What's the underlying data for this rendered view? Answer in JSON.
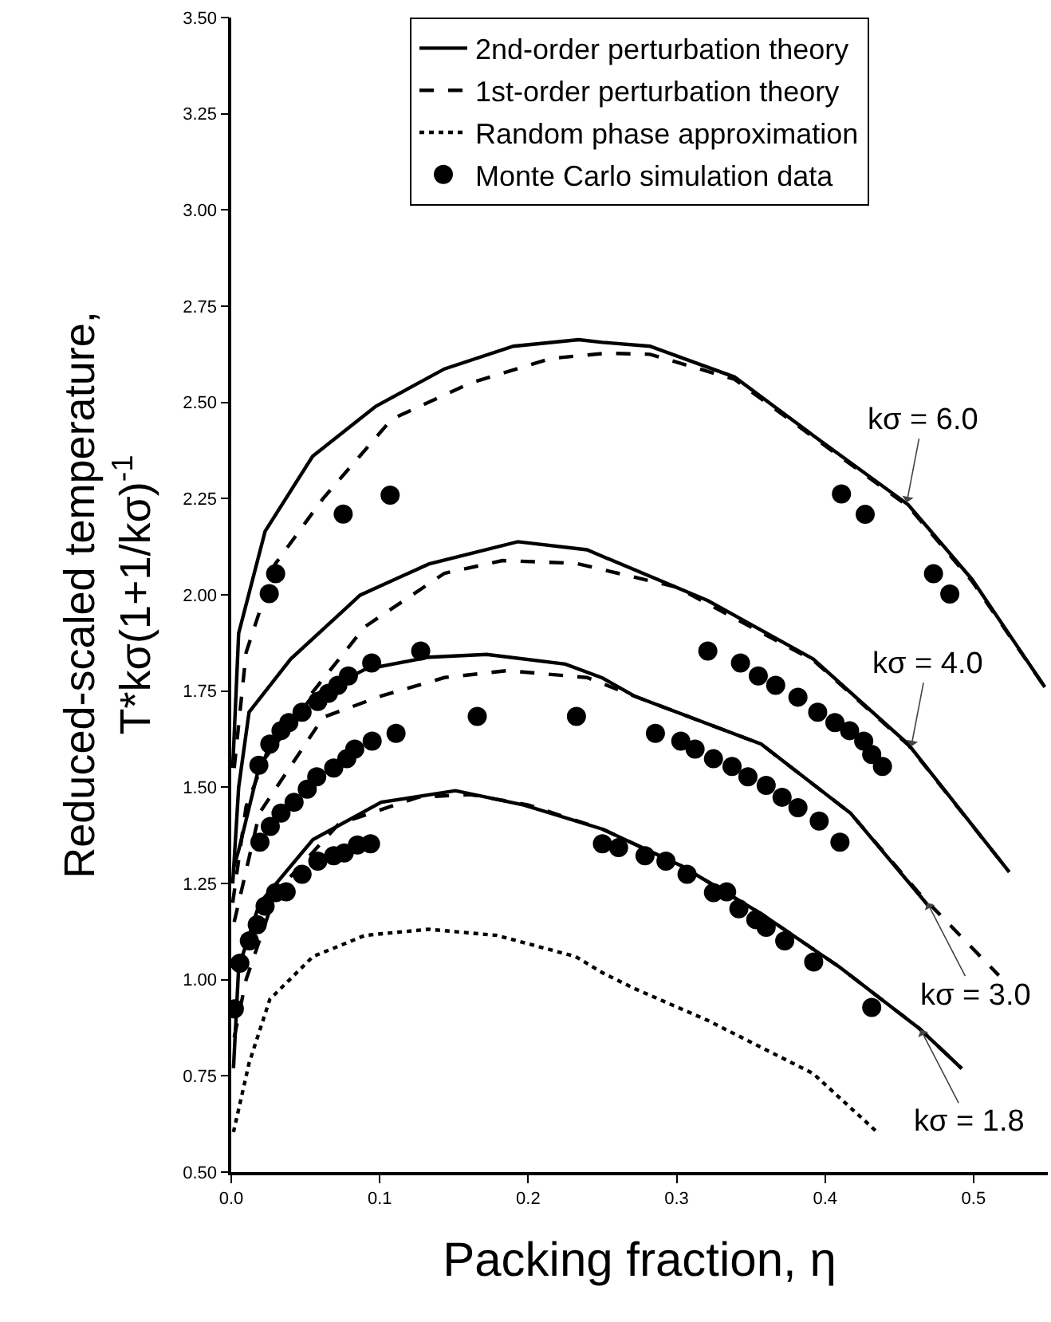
{
  "chart_data": {
    "type": "line",
    "xlabel": "Packing fraction, η",
    "ylabel": "Reduced-scaled temperature,\nT*kσ(1+1/kσ)$^{-1}$",
    "xlim": [
      0,
      0.55
    ],
    "ylim": [
      0.5,
      3.5
    ],
    "xticks": [
      {
        "value": 0,
        "label": "0.0"
      },
      {
        "value": 0.1,
        "label": "0.1"
      },
      {
        "value": 0.2,
        "label": "0.2"
      },
      {
        "value": 0.3,
        "label": "0.3"
      },
      {
        "value": 0.4,
        "label": "0.4"
      },
      {
        "value": 0.5,
        "label": "0.5"
      }
    ],
    "yticks": [
      {
        "value": 0.5,
        "label": "0.50"
      },
      {
        "value": 0.75,
        "label": "0.75"
      },
      {
        "value": 1,
        "label": "1.00"
      },
      {
        "value": 1.25,
        "label": "1.25"
      },
      {
        "value": 1.5,
        "label": "1.50"
      },
      {
        "value": 1.75,
        "label": "1.75"
      },
      {
        "value": 2,
        "label": "2.00"
      },
      {
        "value": 2.25,
        "label": "2.25"
      },
      {
        "value": 2.5,
        "label": "2.50"
      },
      {
        "value": 2.75,
        "label": "2.75"
      },
      {
        "value": 3,
        "label": "3.00"
      },
      {
        "value": 3.25,
        "label": "3.25"
      },
      {
        "value": 3.5,
        "label": "3.50"
      }
    ],
    "grid": false,
    "legend": "top",
    "series": [
      {
        "name": "2nd-order perturbation theory",
        "line_style": "solid",
        "color": "#000000",
        "x": [
          0.001,
          0.005,
          0.0228,
          0.0548,
          0.0974,
          0.1436,
          0.19,
          0.234,
          0.25,
          0.282,
          0.339,
          0.392,
          0.456,
          0.499,
          0.548
        ],
        "values": [
          1.55,
          1.9,
          2.165,
          2.36,
          2.49,
          2.587,
          2.646,
          2.663,
          2.656,
          2.646,
          2.566,
          2.414,
          2.234,
          2.04,
          1.76
        ]
      },
      {
        "name": "1st-order perturbation theory",
        "line_style": "dashed",
        "color": "#000000",
        "x": [
          0.002,
          0.01,
          0.0296,
          0.0618,
          0.108,
          0.161,
          0.215,
          0.253,
          0.282,
          0.339,
          0.392,
          0.456,
          0.499,
          0.548
        ],
        "values": [
          1.55,
          1.85,
          2.08,
          2.25,
          2.456,
          2.55,
          2.614,
          2.628,
          2.625,
          2.56,
          2.41,
          2.23,
          2.035,
          1.76
        ]
      },
      {
        "line_style": "solid",
        "color": "#000000",
        "x": [
          0.001,
          0.005,
          0.012,
          0.04,
          0.0868,
          0.133,
          0.193,
          0.2396,
          0.25,
          0.321,
          0.392,
          0.456,
          0.524
        ],
        "values": [
          1.25,
          1.5,
          1.695,
          1.833,
          1.999,
          2.08,
          2.138,
          2.117,
          2.1,
          1.985,
          1.833,
          1.612,
          1.28
        ]
      },
      {
        "line_style": "dashed",
        "color": "#000000",
        "x": [
          0.001,
          0.01,
          0.025,
          0.044,
          0.09,
          0.1436,
          0.1827,
          0.232,
          0.3,
          0.392,
          0.456,
          0.524
        ],
        "values": [
          1.2,
          1.45,
          1.6,
          1.695,
          1.917,
          2.056,
          2.089,
          2.082,
          2.02,
          1.83,
          1.61,
          1.28
        ]
      },
      {
        "line_style": "solid",
        "color": "#000000",
        "x": [
          0.0015,
          0.005,
          0.019,
          0.0548,
          0.09,
          0.133,
          0.172,
          0.225,
          0.25,
          0.2715,
          0.357,
          0.417,
          0.47
        ],
        "values": [
          1.29,
          1.336,
          1.557,
          1.737,
          1.806,
          1.838,
          1.845,
          1.82,
          1.784,
          1.737,
          1.612,
          1.433,
          1.19
        ]
      },
      {
        "line_style": "dashed",
        "color": "#000000",
        "x": [
          0.002,
          0.019,
          0.062,
          0.101,
          0.1436,
          0.186,
          0.2396,
          0.2715,
          0.357,
          0.417,
          0.463,
          0.517
        ],
        "values": [
          1.15,
          1.433,
          1.682,
          1.737,
          1.785,
          1.803,
          1.785,
          1.737,
          1.612,
          1.433,
          1.226,
          1.011
        ]
      },
      {
        "line_style": "solid",
        "color": "#000000",
        "x": [
          0.0015,
          0.005,
          0.019,
          0.055,
          0.101,
          0.151,
          0.197,
          0.2502,
          0.3035,
          0.357,
          0.41,
          0.4635,
          0.492
        ],
        "values": [
          0.77,
          1.032,
          1.198,
          1.364,
          1.461,
          1.491,
          1.454,
          1.391,
          1.295,
          1.171,
          1.032,
          0.873,
          0.769
        ]
      },
      {
        "line_style": "dashed",
        "color": "#000000",
        "x": [
          0.002,
          0.01,
          0.03,
          0.0725,
          0.126,
          0.161,
          0.2,
          0.2502,
          0.3035,
          0.357,
          0.41,
          0.4635,
          0.492
        ],
        "values": [
          0.85,
          1.0,
          1.226,
          1.405,
          1.474,
          1.481,
          1.454,
          1.391,
          1.295,
          1.171,
          1.032,
          0.873,
          0.769
        ]
      },
      {
        "name": "Random phase approximation",
        "line_style": "dotted",
        "color": "#000000",
        "x": [
          0.0015,
          0.012,
          0.026,
          0.055,
          0.09,
          0.133,
          0.179,
          0.232,
          0.25,
          0.2715,
          0.321,
          0.392,
          0.435
        ],
        "values": [
          0.604,
          0.783,
          0.949,
          1.06,
          1.115,
          1.131,
          1.115,
          1.06,
          1.018,
          0.977,
          0.894,
          0.756,
          0.604
        ]
      },
      {
        "name": "Monte Carlo simulation data",
        "type": "scatter",
        "marker": "circle",
        "color": "#000000",
        "x": [
          0.0256,
          0.0299,
          0.0754,
          0.107,
          0.411,
          0.427,
          0.473,
          0.484,
          0.0186,
          0.026,
          0.0335,
          0.0388,
          0.0477,
          0.0583,
          0.0655,
          0.0718,
          0.0789,
          0.0946,
          0.1276,
          0.321,
          0.343,
          0.355,
          0.3667,
          0.3817,
          0.395,
          0.4066,
          0.4165,
          0.426,
          0.4314,
          0.4386,
          0.0193,
          0.0263,
          0.0335,
          0.0423,
          0.0512,
          0.0576,
          0.069,
          0.0778,
          0.0832,
          0.0949,
          0.111,
          0.1657,
          0.2325,
          0.2857,
          0.3028,
          0.3124,
          0.3248,
          0.3373,
          0.348,
          0.3603,
          0.371,
          0.3817,
          0.396,
          0.41,
          0.0021,
          0.0058,
          0.0122,
          0.0175,
          0.0228,
          0.0299,
          0.037,
          0.0477,
          0.0583,
          0.069,
          0.0761,
          0.085,
          0.0938,
          0.25,
          0.2609,
          0.2787,
          0.2928,
          0.307,
          0.3248,
          0.3337,
          0.3419,
          0.3533,
          0.3603,
          0.3728,
          0.3923,
          0.4314
        ],
        "values": [
          2.003,
          2.055,
          2.21,
          2.259,
          2.262,
          2.209,
          2.055,
          2.002,
          1.557,
          1.612,
          1.647,
          1.668,
          1.695,
          1.723,
          1.744,
          1.765,
          1.789,
          1.823,
          1.854,
          1.854,
          1.823,
          1.789,
          1.765,
          1.734,
          1.695,
          1.668,
          1.647,
          1.62,
          1.585,
          1.554,
          1.357,
          1.398,
          1.433,
          1.461,
          1.495,
          1.527,
          1.55,
          1.574,
          1.599,
          1.62,
          1.64,
          1.684,
          1.684,
          1.64,
          1.62,
          1.599,
          1.574,
          1.554,
          1.527,
          1.505,
          1.474,
          1.447,
          1.412,
          1.357,
          0.924,
          1.043,
          1.101,
          1.143,
          1.191,
          1.226,
          1.228,
          1.274,
          1.308,
          1.322,
          1.329,
          1.35,
          1.353,
          1.353,
          1.343,
          1.322,
          1.308,
          1.274,
          1.226,
          1.228,
          1.184,
          1.156,
          1.136,
          1.101,
          1.046,
          0.928
        ]
      }
    ],
    "annotations": [
      {
        "text": "kσ = 6.0",
        "x": 0.455,
        "y": 2.24
      },
      {
        "text": "kσ = 4.0",
        "x": 0.458,
        "y": 1.606
      },
      {
        "text": "kσ = 3.0",
        "x": 0.4688,
        "y": 1.2
      },
      {
        "text": "kσ = 1.8",
        "x": 0.4644,
        "y": 0.87
      }
    ]
  }
}
